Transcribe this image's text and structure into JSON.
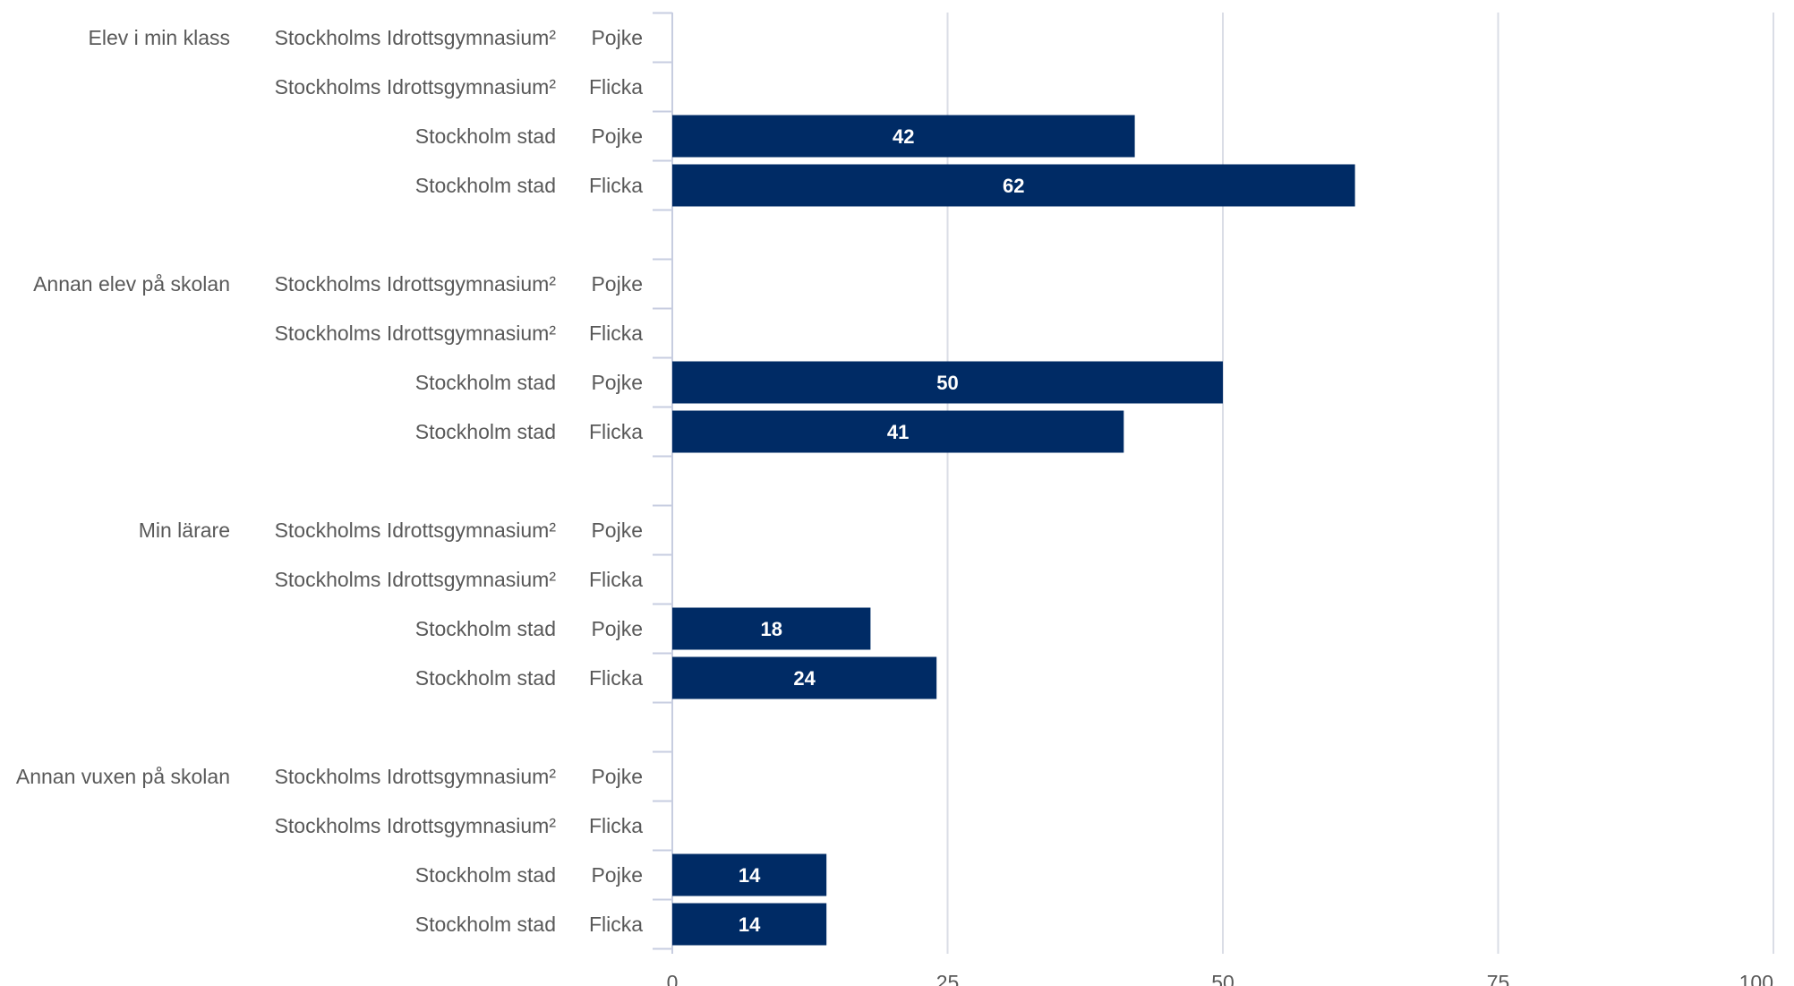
{
  "chart_data": {
    "type": "bar",
    "orientation": "horizontal",
    "title": "",
    "xlabel": "",
    "ylabel": "",
    "xlim": [
      0,
      100
    ],
    "x_ticks": [
      "0",
      "25",
      "50",
      "75",
      "100"
    ],
    "grid": true,
    "bar_color": "#002b65",
    "groups": [
      {
        "category": "Elev i min klass",
        "rows": [
          {
            "school": "Stockholms Idrottsgymnasium²",
            "gender": "Pojke",
            "value": null
          },
          {
            "school": "Stockholms Idrottsgymnasium²",
            "gender": "Flicka",
            "value": null
          },
          {
            "school": "Stockholm stad",
            "gender": "Pojke",
            "value": 42
          },
          {
            "school": "Stockholm stad",
            "gender": "Flicka",
            "value": 62
          }
        ]
      },
      {
        "category": "Annan elev på skolan",
        "rows": [
          {
            "school": "Stockholms Idrottsgymnasium²",
            "gender": "Pojke",
            "value": null
          },
          {
            "school": "Stockholms Idrottsgymnasium²",
            "gender": "Flicka",
            "value": null
          },
          {
            "school": "Stockholm stad",
            "gender": "Pojke",
            "value": 50
          },
          {
            "school": "Stockholm stad",
            "gender": "Flicka",
            "value": 41
          }
        ]
      },
      {
        "category": "Min lärare",
        "rows": [
          {
            "school": "Stockholms Idrottsgymnasium²",
            "gender": "Pojke",
            "value": null
          },
          {
            "school": "Stockholms Idrottsgymnasium²",
            "gender": "Flicka",
            "value": null
          },
          {
            "school": "Stockholm stad",
            "gender": "Pojke",
            "value": 18
          },
          {
            "school": "Stockholm stad",
            "gender": "Flicka",
            "value": 24
          }
        ]
      },
      {
        "category": "Annan vuxen på skolan",
        "rows": [
          {
            "school": "Stockholms Idrottsgymnasium²",
            "gender": "Pojke",
            "value": null
          },
          {
            "school": "Stockholms Idrottsgymnasium²",
            "gender": "Flicka",
            "value": null
          },
          {
            "school": "Stockholm stad",
            "gender": "Pojke",
            "value": 14
          },
          {
            "school": "Stockholm stad",
            "gender": "Flicka",
            "value": 14
          }
        ]
      }
    ]
  }
}
